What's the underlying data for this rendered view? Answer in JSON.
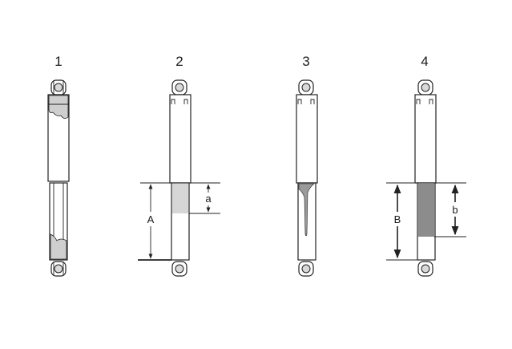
{
  "figures": [
    {
      "number": "1",
      "state": "oil-stain"
    },
    {
      "number": "2",
      "state": "light-oil-film",
      "labels": {
        "total": "A",
        "partial": "a"
      }
    },
    {
      "number": "3",
      "state": "oil-streak"
    },
    {
      "number": "4",
      "state": "heavy-oil-film",
      "labels": {
        "total": "B",
        "partial": "b"
      }
    }
  ],
  "colors": {
    "outline": "#222222",
    "light_oil": "#d6d6d6",
    "dark_oil": "#8c8c8c",
    "stain": "#cfcfcf"
  }
}
